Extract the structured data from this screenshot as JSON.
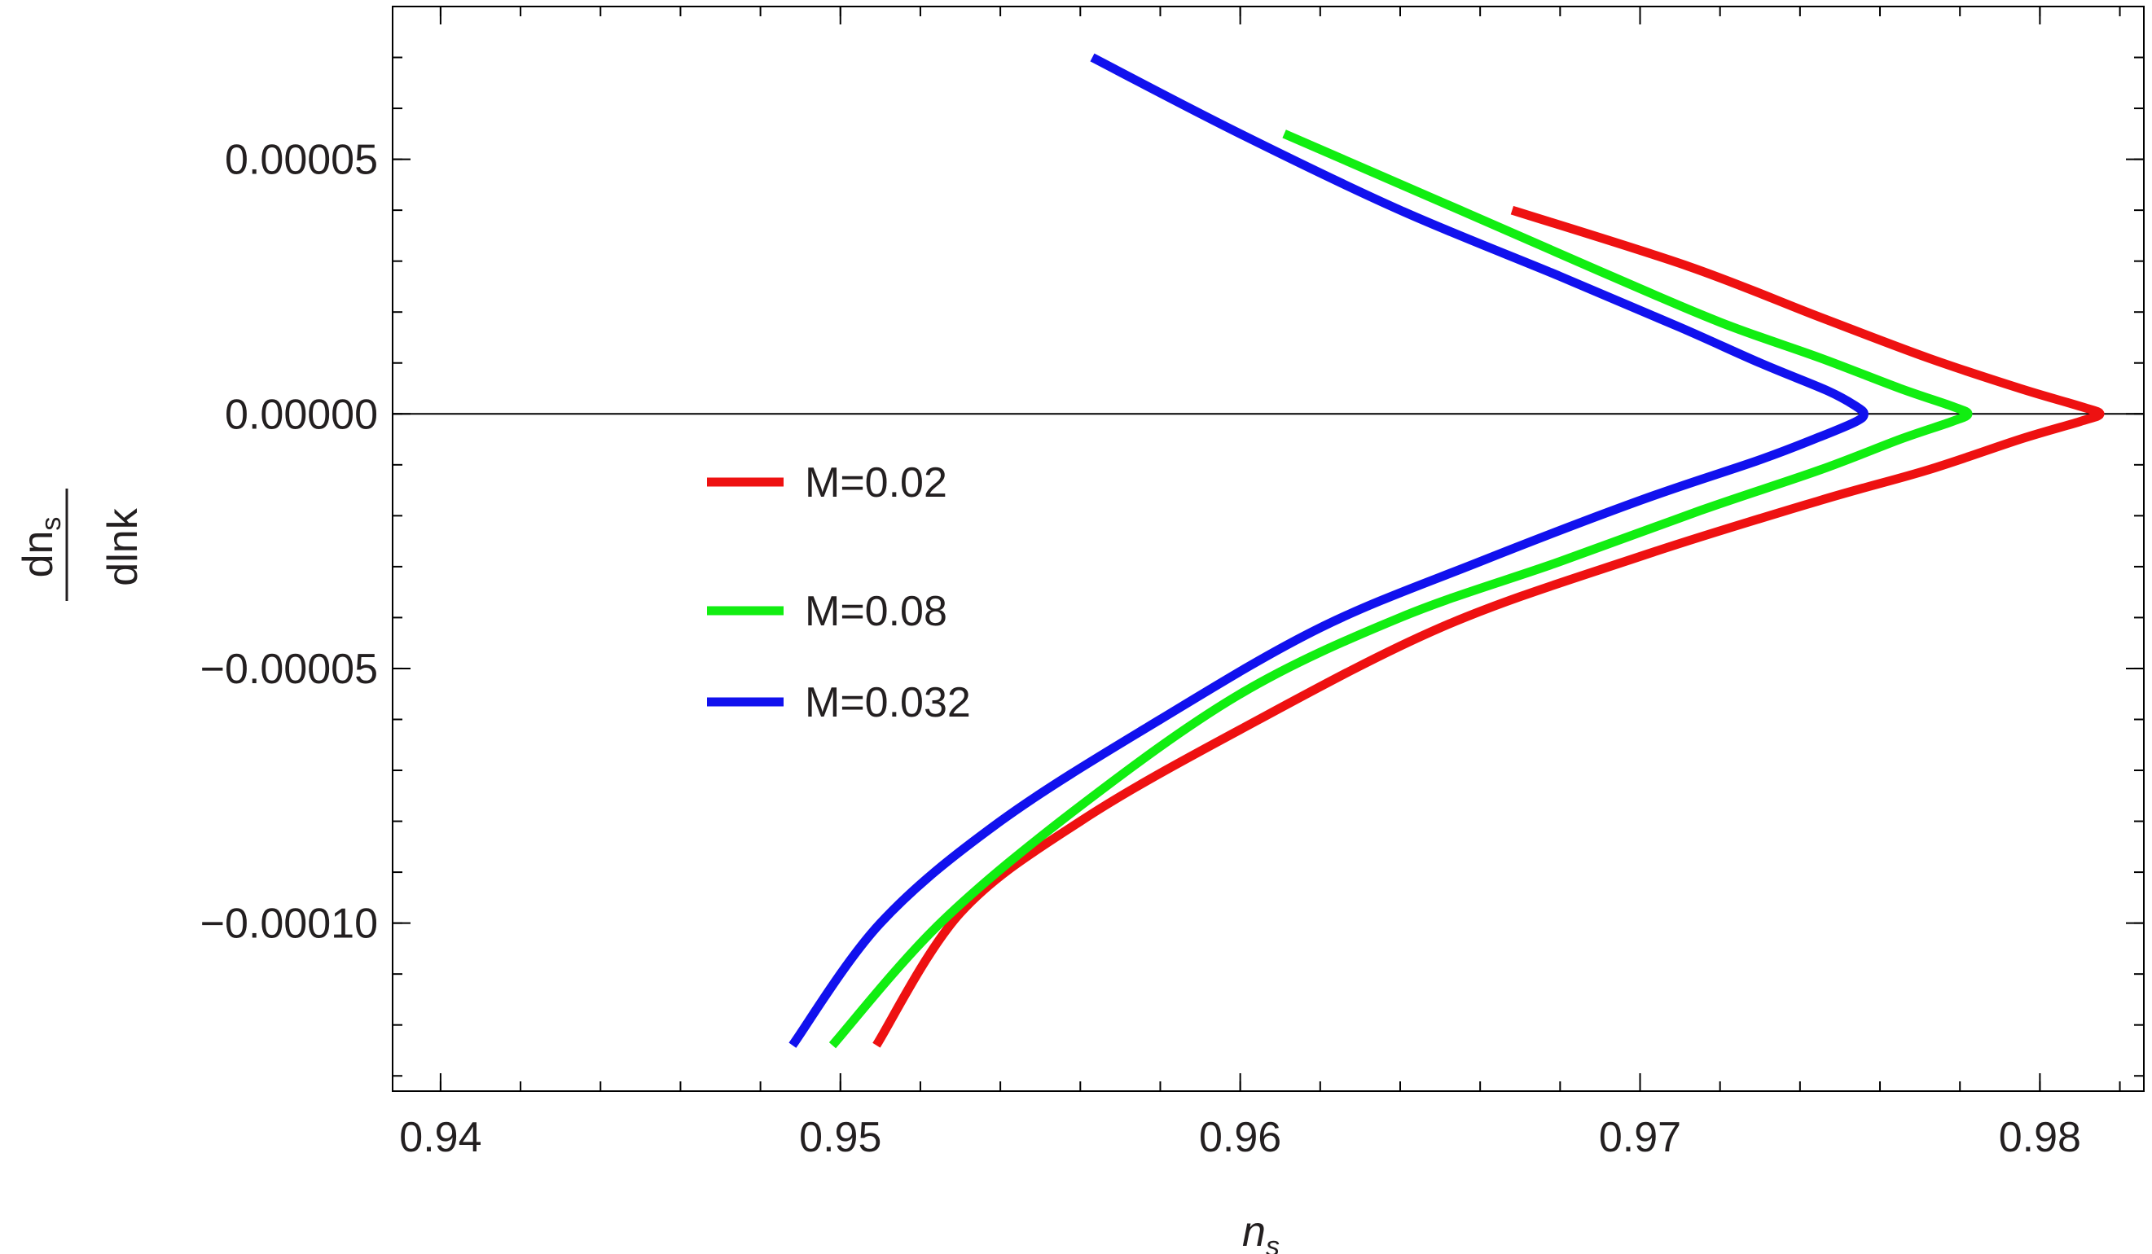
{
  "chart_data": {
    "type": "line",
    "title": "",
    "xlabel": "n",
    "xlabel_sub": "s",
    "ylabel_num": "dn",
    "ylabel_num_sub": "s",
    "ylabel_den": "dlnk",
    "xlim": [
      0.9388,
      0.9826
    ],
    "ylim": [
      -0.000133,
      8e-05
    ],
    "x_ticks": [
      0.94,
      0.95,
      0.96,
      0.97,
      0.98
    ],
    "x_tick_labels": [
      "0.94",
      "0.95",
      "0.96",
      "0.97",
      "0.98"
    ],
    "y_ticks": [
      5e-05,
      0.0,
      -5e-05,
      -0.0001
    ],
    "y_tick_labels": [
      "0.00005",
      "0.00000",
      "−0.00005",
      "−0.00010"
    ],
    "x_minor_step": 0.002,
    "y_minor_step": 1e-05,
    "grid": false,
    "zero_line": true,
    "legend_position": "center-left",
    "series": [
      {
        "name": "M=0.02",
        "color": "#ee1111",
        "points": [
          [
            0.9668,
            4e-05
          ],
          [
            0.9712,
            2.9e-05
          ],
          [
            0.9745,
            1.9e-05
          ],
          [
            0.9772,
            1.1e-05
          ],
          [
            0.9795,
            5e-06
          ],
          [
            0.981,
            1.5e-06
          ],
          [
            0.9815,
            0.0
          ],
          [
            0.981,
            -1.5e-06
          ],
          [
            0.9795,
            -5e-06
          ],
          [
            0.9772,
            -1.1e-05
          ],
          [
            0.9745,
            -1.7e-05
          ],
          [
            0.97,
            -2.8e-05
          ],
          [
            0.965,
            -4.2e-05
          ],
          [
            0.96,
            -6.2e-05
          ],
          [
            0.956,
            -8e-05
          ],
          [
            0.953,
            -9.8e-05
          ],
          [
            0.9509,
            -0.000124
          ]
        ]
      },
      {
        "name": "M=0.08",
        "color": "#11ee11",
        "points": [
          [
            0.9611,
            5.5e-05
          ],
          [
            0.9655,
            4e-05
          ],
          [
            0.969,
            2.8e-05
          ],
          [
            0.972,
            1.8e-05
          ],
          [
            0.9745,
            1.1e-05
          ],
          [
            0.9765,
            5e-06
          ],
          [
            0.9778,
            1.5e-06
          ],
          [
            0.9782,
            0.0
          ],
          [
            0.9778,
            -1.5e-06
          ],
          [
            0.9765,
            -5e-06
          ],
          [
            0.9745,
            -1.1e-05
          ],
          [
            0.9715,
            -1.9e-05
          ],
          [
            0.968,
            -2.9e-05
          ],
          [
            0.964,
            -4e-05
          ],
          [
            0.96,
            -5.5e-05
          ],
          [
            0.956,
            -7.7e-05
          ],
          [
            0.9525,
            -0.0001
          ],
          [
            0.9498,
            -0.000124
          ]
        ]
      },
      {
        "name": "M=0.032",
        "color": "#1111ee",
        "points": [
          [
            0.9563,
            7e-05
          ],
          [
            0.96,
            5.5e-05
          ],
          [
            0.964,
            4e-05
          ],
          [
            0.968,
            2.7e-05
          ],
          [
            0.971,
            1.7e-05
          ],
          [
            0.973,
            1e-05
          ],
          [
            0.9747,
            4.5e-06
          ],
          [
            0.9754,
            1.5e-06
          ],
          [
            0.9756,
            0.0
          ],
          [
            0.9754,
            -1.5e-06
          ],
          [
            0.9745,
            -4.5e-06
          ],
          [
            0.973,
            -9e-06
          ],
          [
            0.97,
            -1.7e-05
          ],
          [
            0.966,
            -2.9e-05
          ],
          [
            0.962,
            -4.2e-05
          ],
          [
            0.958,
            -6e-05
          ],
          [
            0.954,
            -8e-05
          ],
          [
            0.951,
            -0.0001
          ],
          [
            0.9488,
            -0.000124
          ]
        ]
      }
    ]
  }
}
